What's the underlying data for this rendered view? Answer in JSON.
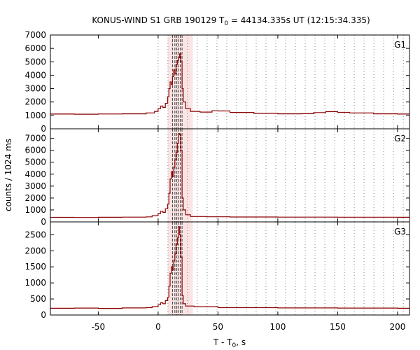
{
  "chart_data": {
    "type": "line",
    "title_parts": {
      "prefix": "KONUS-WIND S1 GRB 190129 T",
      "sub": "0",
      "suffix": " = 44134.335s UT (12:15:34.335)"
    },
    "xlabel_parts": {
      "prefix": "T - T",
      "sub": "0",
      "suffix": ", s"
    },
    "ylabel": "counts / 1024 ms",
    "xlim": [
      -90,
      210
    ],
    "xticks": [
      -50,
      0,
      50,
      100,
      150,
      200
    ],
    "shaded_interval": [
      8.2,
      29.0
    ],
    "dotted_grid_start": 0,
    "dotted_grid_step": 8.192,
    "dashed_lines": [
      12,
      14,
      15.5,
      17,
      18.5,
      20
    ],
    "line_color": "#8b0000",
    "shade_color": "#fbe4e4",
    "panels": [
      {
        "label": "G1",
        "ylim": [
          0,
          7000
        ],
        "yticks": [
          0,
          1000,
          2000,
          3000,
          4000,
          5000,
          6000,
          7000
        ],
        "points": [
          [
            -90,
            1100
          ],
          [
            -70,
            1090
          ],
          [
            -50,
            1110
          ],
          [
            -30,
            1120
          ],
          [
            -10,
            1180
          ],
          [
            -3,
            1300
          ],
          [
            0,
            1500
          ],
          [
            2,
            1700
          ],
          [
            4,
            1600
          ],
          [
            6,
            1900
          ],
          [
            8,
            2400
          ],
          [
            9,
            3000
          ],
          [
            10,
            3500
          ],
          [
            11,
            3300
          ],
          [
            12,
            3900
          ],
          [
            13,
            4400
          ],
          [
            14,
            4100
          ],
          [
            15,
            4800
          ],
          [
            16,
            5100
          ],
          [
            17,
            5300
          ],
          [
            18,
            5600
          ],
          [
            19,
            5000
          ],
          [
            20,
            3000
          ],
          [
            21,
            2000
          ],
          [
            23,
            1500
          ],
          [
            27,
            1300
          ],
          [
            35,
            1250
          ],
          [
            45,
            1350
          ],
          [
            50,
            1330
          ],
          [
            60,
            1220
          ],
          [
            80,
            1150
          ],
          [
            100,
            1120
          ],
          [
            120,
            1130
          ],
          [
            130,
            1210
          ],
          [
            140,
            1280
          ],
          [
            150,
            1230
          ],
          [
            160,
            1180
          ],
          [
            180,
            1120
          ],
          [
            200,
            1100
          ],
          [
            210,
            1100
          ]
        ]
      },
      {
        "label": "G2",
        "ylim": [
          0,
          7800
        ],
        "yticks": [
          0,
          1000,
          2000,
          3000,
          4000,
          5000,
          6000,
          7000
        ],
        "points": [
          [
            -90,
            380
          ],
          [
            -70,
            370
          ],
          [
            -50,
            390
          ],
          [
            -30,
            400
          ],
          [
            -10,
            420
          ],
          [
            -5,
            520
          ],
          [
            0,
            700
          ],
          [
            2,
            900
          ],
          [
            4,
            800
          ],
          [
            6,
            1100
          ],
          [
            8,
            1500
          ],
          [
            9,
            2400
          ],
          [
            10,
            3600
          ],
          [
            11,
            4200
          ],
          [
            12,
            3800
          ],
          [
            13,
            4600
          ],
          [
            14,
            5200
          ],
          [
            15,
            5800
          ],
          [
            16,
            6600
          ],
          [
            17,
            7400
          ],
          [
            18,
            7300
          ],
          [
            19,
            6000
          ],
          [
            20,
            2000
          ],
          [
            21,
            1000
          ],
          [
            23,
            600
          ],
          [
            27,
            450
          ],
          [
            40,
            430
          ],
          [
            60,
            410
          ],
          [
            100,
            400
          ],
          [
            150,
            395
          ],
          [
            200,
            390
          ],
          [
            210,
            390
          ]
        ]
      },
      {
        "label": "G3",
        "ylim": [
          0,
          2900
        ],
        "yticks": [
          0,
          500,
          1000,
          1500,
          2000,
          2500
        ],
        "points": [
          [
            -90,
            210
          ],
          [
            -70,
            215
          ],
          [
            -50,
            205
          ],
          [
            -30,
            220
          ],
          [
            -10,
            230
          ],
          [
            -5,
            260
          ],
          [
            0,
            320
          ],
          [
            2,
            380
          ],
          [
            4,
            350
          ],
          [
            6,
            450
          ],
          [
            8,
            550
          ],
          [
            9,
            900
          ],
          [
            10,
            1300
          ],
          [
            11,
            1500
          ],
          [
            12,
            1400
          ],
          [
            13,
            1700
          ],
          [
            14,
            1900
          ],
          [
            15,
            2200
          ],
          [
            16,
            2400
          ],
          [
            17,
            2750
          ],
          [
            18,
            2500
          ],
          [
            19,
            1800
          ],
          [
            20,
            600
          ],
          [
            21,
            350
          ],
          [
            23,
            280
          ],
          [
            30,
            260
          ],
          [
            50,
            230
          ],
          [
            100,
            220
          ],
          [
            150,
            215
          ],
          [
            200,
            210
          ],
          [
            210,
            210
          ]
        ]
      }
    ]
  }
}
